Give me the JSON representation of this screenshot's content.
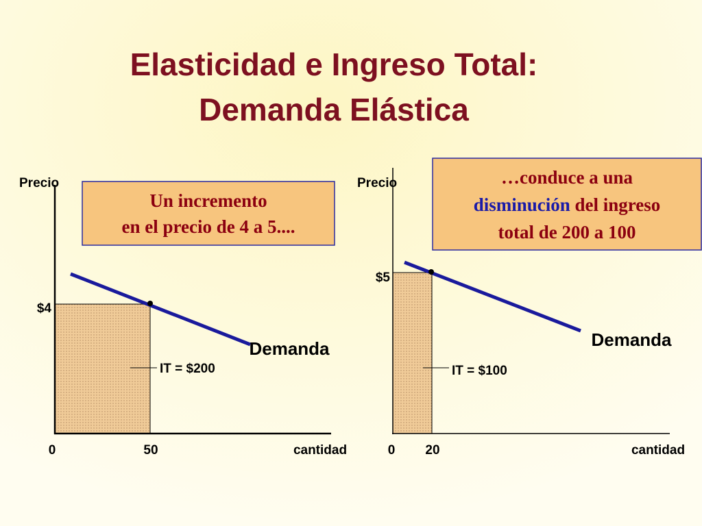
{
  "title": [
    "Elasticidad e Ingreso Total:",
    "Demanda Elástica"
  ],
  "left": {
    "y_label": "Precio",
    "x_label": "cantidad",
    "price": "$4",
    "origin": "0",
    "quantity": "50",
    "revenue": "IT = $200",
    "curve": "Demanda",
    "note": [
      "Un incremento",
      "en el precio de 4 a 5...."
    ]
  },
  "right": {
    "y_label": "Precio",
    "x_label": "cantidad",
    "price": "$5",
    "origin": "0",
    "quantity": "20",
    "revenue": "IT = $100",
    "curve": "Demanda",
    "note": [
      "…conduce a una",
      "disminución",
      "del ingreso",
      "total de 200 a 100"
    ]
  }
}
